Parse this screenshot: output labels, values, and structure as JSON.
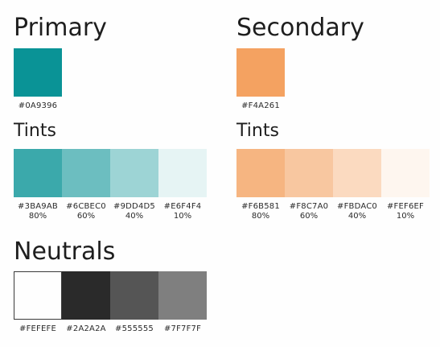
{
  "primary": {
    "title": "Primary",
    "base": {
      "hex": "#0A9396",
      "color": "#0A9396"
    },
    "tints_title": "Tints",
    "tints": [
      {
        "hex": "#3BA9AB",
        "pct": "80%",
        "color": "#3BA9AB"
      },
      {
        "hex": "#6CBEC0",
        "pct": "60%",
        "color": "#6CBEC0"
      },
      {
        "hex": "#9DD4D5",
        "pct": "40%",
        "color": "#9DD4D5"
      },
      {
        "hex": "#E6F4F4",
        "pct": "10%",
        "color": "#E6F4F4"
      }
    ]
  },
  "secondary": {
    "title": "Secondary",
    "base": {
      "hex": "#F4A261",
      "color": "#F4A261"
    },
    "tints_title": "Tints",
    "tints": [
      {
        "hex": "#F6B581",
        "pct": "80%",
        "color": "#F6B581"
      },
      {
        "hex": "#F8C7A0",
        "pct": "60%",
        "color": "#F8C7A0"
      },
      {
        "hex": "#FBDAC0",
        "pct": "40%",
        "color": "#FBDAC0"
      },
      {
        "hex": "#FEF6EF",
        "pct": "10%",
        "color": "#FEF6EF"
      }
    ]
  },
  "neutrals": {
    "title": "Neutrals",
    "swatches": [
      {
        "hex": "#FEFEFE",
        "color": "#FEFEFE"
      },
      {
        "hex": "#2A2A2A",
        "color": "#2A2A2A"
      },
      {
        "hex": "#555555",
        "color": "#555555"
      },
      {
        "hex": "#7F7F7F",
        "color": "#7F7F7F"
      }
    ]
  }
}
